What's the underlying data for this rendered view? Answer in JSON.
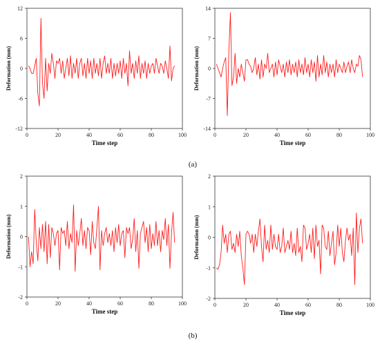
{
  "captions": [
    "(a)",
    "(b)"
  ],
  "colors": {
    "series": "#ff1a1a",
    "axis": "#333333"
  },
  "chart_data": [
    {
      "type": "line",
      "xlabel": "Time step",
      "ylabel": "Deformation (mm)",
      "xlim": [
        0,
        100
      ],
      "ylim": [
        -12,
        12
      ],
      "xticks": [
        0,
        20,
        40,
        60,
        80,
        100
      ],
      "yticks": [
        -12,
        -6,
        0,
        6,
        12
      ],
      "grid": false,
      "series": [
        {
          "x": [
            1,
            2,
            3,
            4,
            5,
            6,
            7,
            8,
            9,
            10,
            11,
            12,
            13,
            14,
            15,
            16,
            17,
            18,
            19,
            20,
            21,
            22,
            23,
            24,
            25,
            26,
            27,
            28,
            29,
            30,
            31,
            32,
            33,
            34,
            35,
            36,
            37,
            38,
            39,
            40,
            41,
            42,
            43,
            44,
            45,
            46,
            47,
            48,
            49,
            50,
            51,
            52,
            53,
            54,
            55,
            56,
            57,
            58,
            59,
            60,
            61,
            62,
            63,
            64,
            65,
            66,
            67,
            68,
            69,
            70,
            71,
            72,
            73,
            74,
            75,
            76,
            77,
            78,
            79,
            80,
            81,
            82,
            83,
            84,
            85,
            86,
            87,
            88,
            89,
            90,
            91,
            92,
            93,
            94,
            95
          ],
          "values": [
            0.5,
            0,
            -1,
            -1,
            0.5,
            2,
            -5,
            -7.5,
            10,
            -3,
            -6,
            2,
            -4.5,
            1,
            -1,
            3,
            1,
            -2,
            1.5,
            1,
            2,
            -1,
            1.5,
            -2,
            0,
            2,
            -1.5,
            2.5,
            -2,
            1,
            -1,
            2,
            -2,
            1,
            2,
            -1.5,
            1,
            -2,
            2,
            -1,
            1.5,
            -2,
            2,
            -1,
            1,
            -1.5,
            2,
            -2,
            1,
            2.5,
            -1,
            1,
            -1,
            2,
            -2,
            1,
            -1.5,
            1,
            -1,
            1.5,
            -2,
            2,
            -1,
            1,
            -3.5,
            3.5,
            -1,
            1,
            -2,
            1.5,
            -1,
            2.5,
            -2,
            1,
            -1,
            1.5,
            -2,
            1,
            -1,
            0.5,
            1,
            -1,
            2,
            0.5,
            -1,
            1,
            0.5,
            -1,
            1.5,
            0,
            -2,
            4.5,
            -2.5,
            0,
            0.5
          ]
        }
      ]
    },
    {
      "type": "line",
      "xlabel": "Time step",
      "ylabel": "Deformation (mm)",
      "xlim": [
        0,
        100
      ],
      "ylim": [
        -14,
        14
      ],
      "xticks": [
        0,
        20,
        40,
        60,
        80,
        100
      ],
      "yticks": [
        -14,
        -7,
        0,
        7,
        14
      ],
      "grid": false,
      "series": [
        {
          "x": [
            1,
            2,
            3,
            4,
            5,
            6,
            7,
            8,
            9,
            10,
            11,
            12,
            13,
            14,
            15,
            16,
            17,
            18,
            19,
            20,
            21,
            22,
            23,
            24,
            25,
            26,
            27,
            28,
            29,
            30,
            31,
            32,
            33,
            34,
            35,
            36,
            37,
            38,
            39,
            40,
            41,
            42,
            43,
            44,
            45,
            46,
            47,
            48,
            49,
            50,
            51,
            52,
            53,
            54,
            55,
            56,
            57,
            58,
            59,
            60,
            61,
            62,
            63,
            64,
            65,
            66,
            67,
            68,
            69,
            70,
            71,
            72,
            73,
            74,
            75,
            76,
            77,
            78,
            79,
            80,
            81,
            82,
            83,
            84,
            85,
            86,
            87,
            88,
            89,
            90,
            91,
            92,
            93,
            94,
            95
          ],
          "values": [
            1,
            0,
            -1,
            -2,
            0,
            1.5,
            2.5,
            -11,
            4,
            13,
            -4,
            -2,
            3.5,
            -3.5,
            0,
            -2,
            1,
            -1,
            -3,
            2,
            2,
            1,
            0.5,
            -1,
            0,
            2.5,
            -1.5,
            1,
            -2.5,
            2,
            -2,
            1,
            0,
            3.5,
            -1,
            0,
            1,
            -2,
            1.5,
            -1.5,
            2,
            0.5,
            -1,
            1,
            -2,
            1.5,
            -1,
            2,
            -1.5,
            1,
            -1,
            1.5,
            -2,
            2,
            -1,
            1,
            -1.5,
            2.5,
            -1,
            1,
            -2,
            2,
            -1,
            1.5,
            -3,
            3,
            -2,
            1,
            -1.5,
            3,
            -1,
            1.5,
            -2,
            1,
            -1,
            1,
            -2,
            2,
            -1,
            1,
            0,
            -1,
            1.5,
            -1,
            0.5,
            1.5,
            -1,
            2,
            0,
            -1,
            1,
            0.5,
            3,
            2,
            -2
          ]
        }
      ]
    },
    {
      "type": "line",
      "xlabel": "Time step",
      "ylabel": "Deformation (mm)",
      "xlim": [
        0,
        100
      ],
      "ylim": [
        -2,
        2
      ],
      "xticks": [
        0,
        20,
        40,
        60,
        80,
        100
      ],
      "yticks": [
        -2,
        -1,
        0,
        1,
        2
      ],
      "grid": false,
      "series": [
        {
          "x": [
            1,
            2,
            3,
            4,
            5,
            6,
            7,
            8,
            9,
            10,
            11,
            12,
            13,
            14,
            15,
            16,
            17,
            18,
            19,
            20,
            21,
            22,
            23,
            24,
            25,
            26,
            27,
            28,
            29,
            30,
            31,
            32,
            33,
            34,
            35,
            36,
            37,
            38,
            39,
            40,
            41,
            42,
            43,
            44,
            45,
            46,
            47,
            48,
            49,
            50,
            51,
            52,
            53,
            54,
            55,
            56,
            57,
            58,
            59,
            60,
            61,
            62,
            63,
            64,
            65,
            66,
            67,
            68,
            69,
            70,
            71,
            72,
            73,
            74,
            75,
            76,
            77,
            78,
            79,
            80,
            81,
            82,
            83,
            84,
            85,
            86,
            87,
            88,
            89,
            90,
            91,
            92,
            93,
            94,
            95
          ],
          "values": [
            0,
            -1,
            -0.5,
            -0.9,
            0.9,
            -0.2,
            -0.8,
            0.3,
            -0.4,
            0.4,
            -0.5,
            0.5,
            -0.9,
            0.4,
            -0.7,
            0.3,
            0.1,
            -0.3,
            0.1,
            0.2,
            -1.1,
            0.3,
            0.1,
            0.2,
            -0.3,
            0.5,
            -0.4,
            0.1,
            -0.2,
            1.05,
            -1.15,
            0.2,
            -0.3,
            0.1,
            0.6,
            -0.3,
            0.2,
            -0.4,
            0.3,
            0.2,
            -0.6,
            0.5,
            -0.2,
            -0.4,
            0.3,
            1,
            -1.1,
            0.2,
            -0.3,
            0.1,
            0.3,
            -0.2,
            0.1,
            -0.3,
            0.2,
            -0.5,
            0.3,
            -0.2,
            0.4,
            -0.3,
            0.1,
            0.2,
            -0.7,
            0.3,
            0.1,
            0.3,
            -0.4,
            -0.1,
            0.6,
            -0.5,
            0.2,
            -1.05,
            0.1,
            0.3,
            0.5,
            -0.2,
            0.3,
            -0.5,
            0.4,
            -0.4,
            0.1,
            -0.3,
            0.5,
            -0.3,
            0.2,
            -0.5,
            0.2,
            -0.1,
            0.6,
            -0.3,
            0.4,
            -1.05,
            0.1,
            0.8,
            -0.2
          ]
        }
      ]
    },
    {
      "type": "line",
      "xlabel": "Time step",
      "ylabel": "Deformation (mm)",
      "xlim": [
        0,
        100
      ],
      "ylim": [
        -2,
        2
      ],
      "xticks": [
        0,
        20,
        40,
        60,
        80,
        100
      ],
      "yticks": [
        -2,
        -1,
        0,
        1,
        2
      ],
      "grid": false,
      "series": [
        {
          "x": [
            1,
            2,
            3,
            4,
            5,
            6,
            7,
            8,
            9,
            10,
            11,
            12,
            13,
            14,
            15,
            16,
            17,
            18,
            19,
            20,
            21,
            22,
            23,
            24,
            25,
            26,
            27,
            28,
            29,
            30,
            31,
            32,
            33,
            34,
            35,
            36,
            37,
            38,
            39,
            40,
            41,
            42,
            43,
            44,
            45,
            46,
            47,
            48,
            49,
            50,
            51,
            52,
            53,
            54,
            55,
            56,
            57,
            58,
            59,
            60,
            61,
            62,
            63,
            64,
            65,
            66,
            67,
            68,
            69,
            70,
            71,
            72,
            73,
            74,
            75,
            76,
            77,
            78,
            79,
            80,
            81,
            82,
            83,
            84,
            85,
            86,
            87,
            88,
            89,
            90,
            91,
            92,
            93,
            94,
            95
          ],
          "values": [
            -1,
            -1.05,
            -0.9,
            -0.5,
            0.4,
            -0.2,
            0.1,
            -0.5,
            0.1,
            0.2,
            -0.4,
            -0.2,
            -0.5,
            0.1,
            -0.3,
            0.2,
            -0.6,
            -1,
            -1.55,
            0.1,
            0.2,
            0.1,
            -0.2,
            0.1,
            -0.5,
            0.1,
            -0.3,
            0.2,
            0.6,
            -0.3,
            -0.8,
            0.4,
            -0.4,
            -0.1,
            -0.5,
            0.4,
            -0.4,
            0.1,
            -0.3,
            -0.4,
            0.1,
            -0.5,
            -0.3,
            0.3,
            -0.5,
            -0.3,
            -0.1,
            -0.4,
            0.2,
            -0.5,
            -0.2,
            -0.6,
            0.3,
            -0.5,
            -0.3,
            -0.8,
            0.4,
            0.3,
            -0.4,
            -0.2,
            0.1,
            -0.5,
            0.3,
            -0.7,
            0.4,
            -0.3,
            -0.1,
            -1.2,
            0.4,
            0.3,
            -0.3,
            -0.4,
            0.2,
            -0.6,
            -0.2,
            0.2,
            -0.9,
            -0.5,
            0.4,
            -0.3,
            0.3,
            -0.5,
            -0.8,
            -0.1,
            0.3,
            -0.1,
            0.1,
            -0.6,
            0.3,
            -1.55,
            0.8,
            -0.5,
            0.3,
            0.6,
            -0.2
          ]
        }
      ]
    }
  ]
}
